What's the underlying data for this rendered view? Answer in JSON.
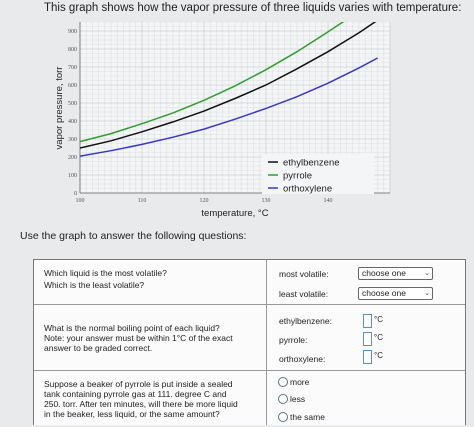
{
  "intro_text": "This graph shows how the vapor pressure of three liquids varies with temperature:",
  "prompt_text": "Use the graph to answer the following questions:",
  "chart_data": {
    "type": "line",
    "xlabel": "temperature, °C",
    "ylabel": "vapor pressure, torr",
    "xlim": [
      100,
      150
    ],
    "ylim": [
      0,
      950
    ],
    "x_ticks": [
      100,
      110,
      120,
      130,
      140
    ],
    "y_ticks": [
      0,
      100,
      200,
      300,
      400,
      500,
      600,
      700,
      800,
      900
    ],
    "grid": true,
    "legend_position": "bottom-right",
    "colors": {
      "ethylbenzene": "#111111",
      "pyrrole": "#2ca02c",
      "orthoxylene": "#3a36c8"
    },
    "series": [
      {
        "name": "ethylbenzene",
        "x": [
          100,
          105,
          110,
          115,
          120,
          125,
          130,
          135,
          140,
          145,
          148
        ],
        "y": [
          250,
          290,
          340,
          395,
          455,
          525,
          600,
          690,
          785,
          890,
          960
        ]
      },
      {
        "name": "pyrrole",
        "x": [
          100,
          105,
          110,
          115,
          120,
          125,
          130,
          135,
          140,
          145
        ],
        "y": [
          285,
          330,
          385,
          445,
          515,
          595,
          685,
          785,
          895,
          1010
        ]
      },
      {
        "name": "orthoxylene",
        "x": [
          100,
          105,
          110,
          115,
          120,
          125,
          130,
          135,
          140,
          145,
          148
        ],
        "y": [
          205,
          235,
          270,
          310,
          355,
          410,
          470,
          535,
          610,
          695,
          750
        ]
      }
    ]
  },
  "questions": {
    "q1": {
      "line1": "Which liquid is the most volatile?",
      "line2": "Which is the least volatile?",
      "most_label": "most volatile:",
      "least_label": "least volatile:",
      "most_value": "choose one",
      "least_value": "choose one"
    },
    "q2": {
      "line1": "What is the normal boiling point of each liquid?",
      "line2": "Note: your answer must be within 1°C of the exact",
      "line3": "answer to be graded correct.",
      "eb_label": "ethylbenzene:",
      "py_label": "pyrrole:",
      "ox_label": "orthoxylene:",
      "unit": "°C"
    },
    "q3": {
      "line1": "Suppose a beaker of pyrrole is put inside a sealed",
      "line2": "tank containing pyrrole gas at 111. degree C and",
      "line3": "250. torr. After ten minutes, will there be more liquid",
      "line4": "in the beaker, less liquid, or the same amount?",
      "options": [
        "more",
        "less",
        "the same"
      ]
    }
  }
}
